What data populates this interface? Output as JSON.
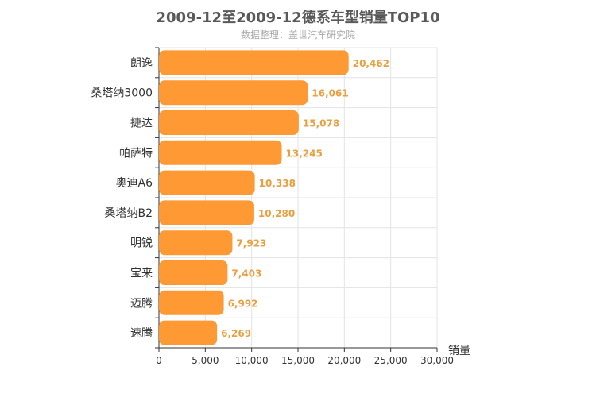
{
  "chart_data": {
    "type": "bar",
    "orientation": "horizontal",
    "title": "2009-12至2009-12德系车型销量TOP10",
    "subtitle": "数据整理：盖世汽车研究院",
    "xlabel": "销量",
    "ylabel": "",
    "xlim": [
      0,
      30000
    ],
    "x_ticks": [
      "0",
      "5,000",
      "10,000",
      "15,000",
      "20,000",
      "25,000",
      "30,000"
    ],
    "x_tick_values": [
      0,
      5000,
      10000,
      15000,
      20000,
      25000,
      30000
    ],
    "categories": [
      "朗逸",
      "桑塔纳3000",
      "捷达",
      "帕萨特",
      "奥迪A6",
      "桑塔纳B2",
      "明锐",
      "宝来",
      "迈腾",
      "速腾"
    ],
    "values": [
      20462,
      16061,
      15078,
      13245,
      10338,
      10280,
      7923,
      7403,
      6992,
      6269
    ],
    "value_labels": [
      "20,462",
      "16,061",
      "15,078",
      "13,245",
      "10,338",
      "10,280",
      "7,923",
      "7,403",
      "6,992",
      "6,269"
    ],
    "grid": true,
    "bar_color": "#ff9933",
    "label_color": "#e8a042"
  }
}
